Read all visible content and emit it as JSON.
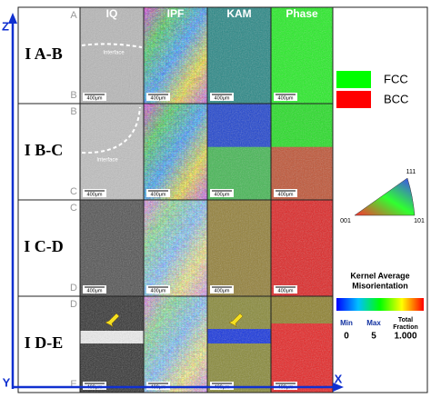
{
  "axes": {
    "z": "Z",
    "y": "Y",
    "x": "X"
  },
  "columns": [
    "IQ",
    "IPF",
    "KAM",
    "Phase"
  ],
  "rows": [
    {
      "label": "I A-B",
      "top": "A",
      "bottom": "B"
    },
    {
      "label": "I B-C",
      "top": "B",
      "bottom": "C"
    },
    {
      "label": "I C-D",
      "top": "C",
      "bottom": "D"
    },
    {
      "label": "I D-E",
      "top": "D",
      "bottom": "E"
    }
  ],
  "scale_bar": "400μm",
  "interface_label": "Interface",
  "phase_legend": [
    {
      "name": "FCC",
      "color": "#00ff00"
    },
    {
      "name": "BCC",
      "color": "#ff0000"
    }
  ],
  "ipf_triangle": {
    "top": "111",
    "left": "001",
    "right": "101"
  },
  "kam_legend": {
    "title": [
      "Kernel Average",
      "Misorientation"
    ],
    "min_label": "Min",
    "min": 0,
    "max_label": "Max",
    "max": 5,
    "total_label": [
      "Total",
      "Fraction"
    ],
    "total": "1.000"
  }
}
